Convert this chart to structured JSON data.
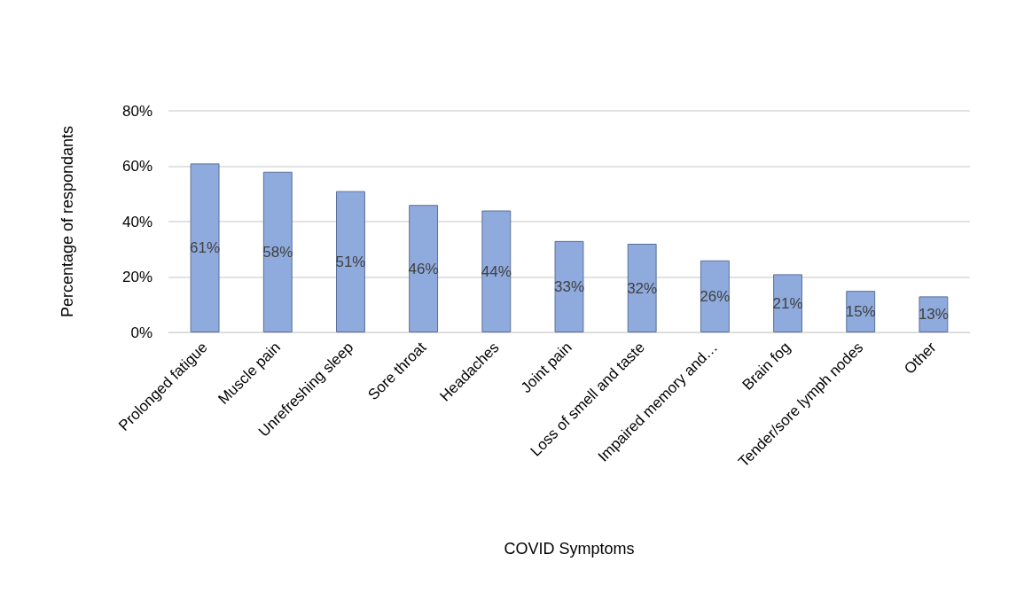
{
  "chart_data": {
    "type": "bar",
    "xlabel": "COVID Symptoms",
    "ylabel": "Percentage of respondants",
    "categories": [
      "Prolonged fatigue",
      "Muscle pain",
      "Unrefreshing sleep",
      "Sore throat",
      "Headaches",
      "Joint pain",
      "Loss of smell and taste",
      "Impaired memory and…",
      "Brain fog",
      "Tender/sore lymph nodes",
      "Other"
    ],
    "values": [
      61,
      58,
      51,
      46,
      44,
      33,
      32,
      26,
      21,
      15,
      13
    ],
    "value_labels": [
      "61%",
      "58%",
      "51%",
      "46%",
      "44%",
      "33%",
      "32%",
      "26%",
      "21%",
      "15%",
      "13%"
    ],
    "color": "#8faadc",
    "ylim": [
      0,
      80
    ],
    "yticks": [
      {
        "value": 0,
        "label": "0%"
      },
      {
        "value": 20,
        "label": "20%"
      },
      {
        "value": 40,
        "label": "40%"
      },
      {
        "value": 60,
        "label": "60%"
      },
      {
        "value": 80,
        "label": "80%"
      }
    ],
    "grid": "y"
  }
}
